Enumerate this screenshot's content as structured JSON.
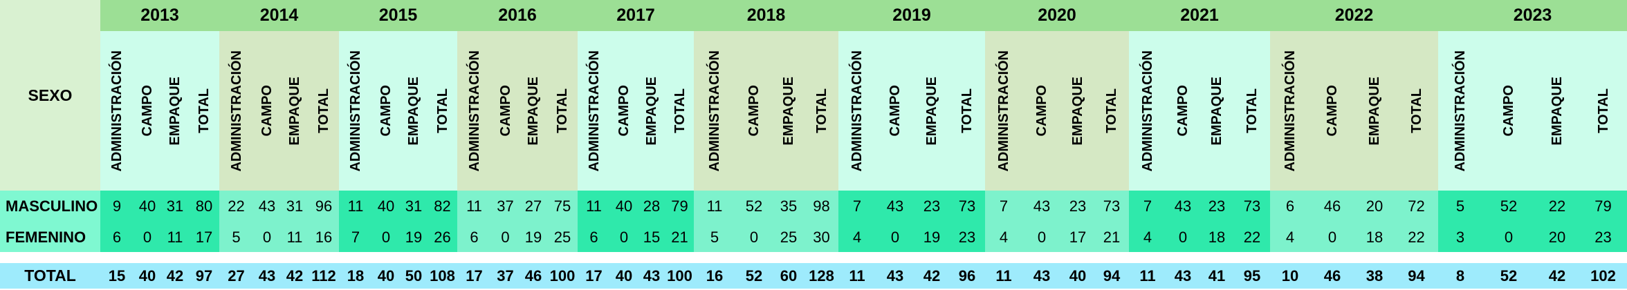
{
  "chart_data": {
    "type": "table",
    "corner_label": "SEXO",
    "column_headers": [
      "ADMINISTRACIÓN",
      "CAMPO",
      "EMPAQUE",
      "TOTAL"
    ],
    "row_labels": {
      "masculino": "MASCULINO",
      "femenino": "FEMENINO",
      "total": "TOTAL"
    },
    "years": [
      {
        "label": "2013",
        "masculino": [
          9,
          40,
          31,
          80
        ],
        "femenino": [
          6,
          0,
          11,
          17
        ],
        "total": [
          15,
          40,
          42,
          97
        ],
        "flag_on_total_cell": false
      },
      {
        "label": "2014",
        "masculino": [
          22,
          43,
          31,
          96
        ],
        "femenino": [
          5,
          0,
          11,
          16
        ],
        "total": [
          27,
          43,
          42,
          112
        ],
        "flag_on_total_cell": false
      },
      {
        "label": "2015",
        "masculino": [
          11,
          40,
          31,
          82
        ],
        "femenino": [
          7,
          0,
          19,
          26
        ],
        "total": [
          18,
          40,
          50,
          108
        ],
        "flag_on_total_cell": false
      },
      {
        "label": "2016",
        "masculino": [
          11,
          37,
          27,
          75
        ],
        "femenino": [
          6,
          0,
          19,
          25
        ],
        "total": [
          17,
          37,
          46,
          100
        ],
        "flag_on_total_cell": false
      },
      {
        "label": "2017",
        "masculino": [
          11,
          40,
          28,
          79
        ],
        "femenino": [
          6,
          0,
          15,
          21
        ],
        "total": [
          17,
          40,
          43,
          100
        ],
        "flag_on_total_cell": false
      },
      {
        "label": "2018",
        "masculino": [
          11,
          52,
          35,
          98
        ],
        "femenino": [
          5,
          0,
          25,
          30
        ],
        "total": [
          16,
          52,
          60,
          128
        ],
        "flag_on_total_cell": false
      },
      {
        "label": "2019",
        "masculino": [
          7,
          43,
          23,
          73
        ],
        "femenino": [
          4,
          0,
          19,
          23
        ],
        "total": [
          11,
          43,
          42,
          96
        ],
        "flag_on_total_cell": true
      },
      {
        "label": "2020",
        "masculino": [
          7,
          43,
          23,
          73
        ],
        "femenino": [
          4,
          0,
          17,
          21
        ],
        "total": [
          11,
          43,
          40,
          94
        ],
        "flag_on_total_cell": true
      },
      {
        "label": "2021",
        "masculino": [
          7,
          43,
          23,
          73
        ],
        "femenino": [
          4,
          0,
          18,
          22
        ],
        "total": [
          11,
          43,
          41,
          95
        ],
        "flag_on_total_cell": true
      },
      {
        "label": "2022",
        "masculino": [
          6,
          46,
          20,
          72
        ],
        "femenino": [
          4,
          0,
          18,
          22
        ],
        "total": [
          10,
          46,
          38,
          94
        ],
        "flag_on_total_cell": true
      },
      {
        "label": "2023",
        "masculino": [
          5,
          52,
          22,
          79
        ],
        "femenino": [
          3,
          0,
          20,
          23
        ],
        "total": [
          8,
          52,
          42,
          102
        ],
        "flag_on_total_cell": false
      }
    ]
  },
  "colors": {
    "year_band": "#9CDF95",
    "header_cyan": "#CCFDEB",
    "header_sage": "#D5E8C4",
    "data_bright": "#2FE9AB",
    "data_light": "#7DF2CC",
    "label_header_bg": "#D9F1D1",
    "label_rows_bg": "#7FF8D1",
    "total_row_bg": "#9EEBFC",
    "flag_indicator": "#2E9E40"
  }
}
